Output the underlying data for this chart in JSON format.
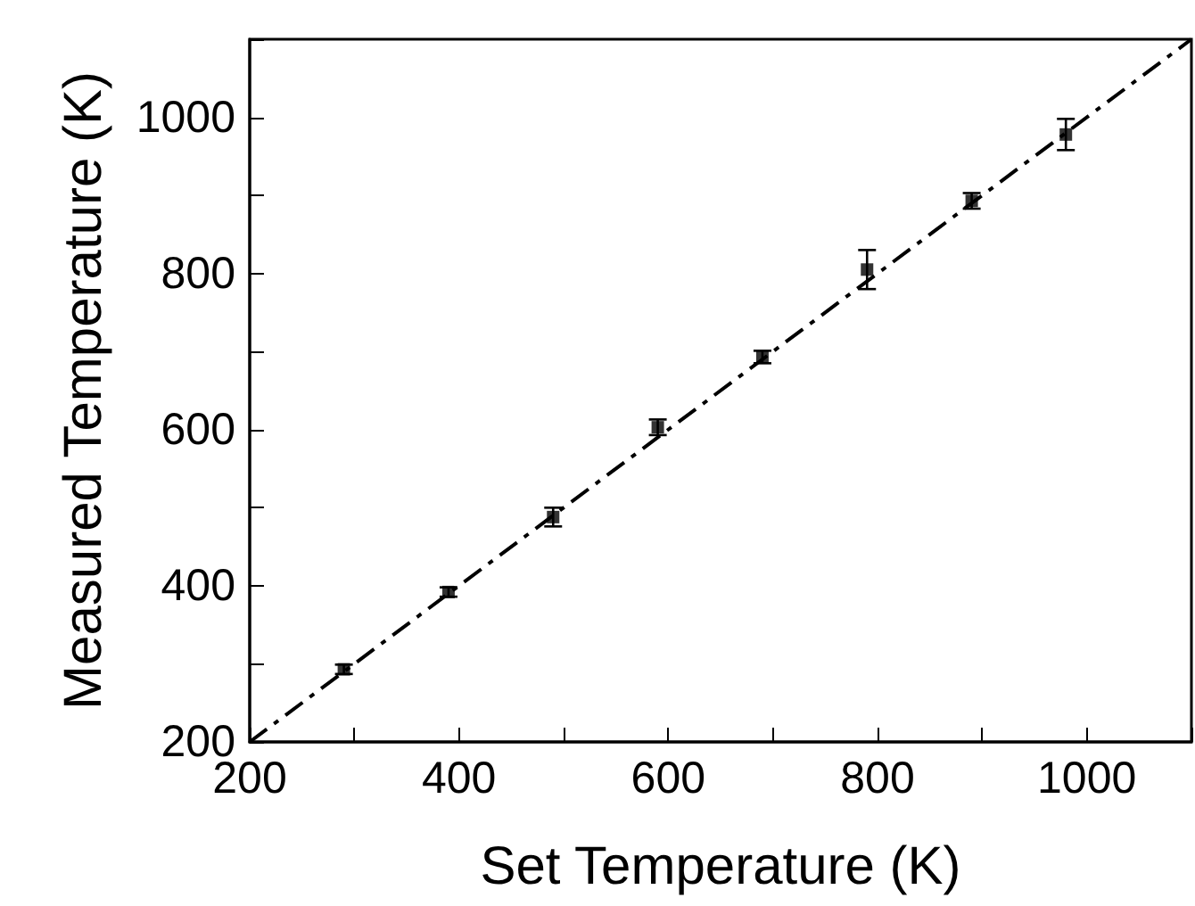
{
  "chart_data": {
    "type": "scatter",
    "xlabel": "Set Temperature (K)",
    "ylabel": "Measured Temperature (K)",
    "xlim": [
      200,
      1100
    ],
    "ylim": [
      200,
      1100
    ],
    "xticks": [
      200,
      {
        "value": 300,
        "label": null
      },
      400,
      {
        "value": 500,
        "label": null
      },
      600,
      {
        "value": 700,
        "label": null
      },
      800,
      {
        "value": 900,
        "label": null
      },
      1000,
      {
        "value": 1100,
        "label": null
      }
    ],
    "yticks": [
      200,
      {
        "value": 300,
        "label": null
      },
      400,
      {
        "value": 500,
        "label": null
      },
      600,
      {
        "value": 700,
        "label": null
      },
      800,
      {
        "value": 900,
        "label": null
      },
      1000,
      {
        "value": 1100,
        "label": null
      }
    ],
    "grid": false,
    "series": [
      {
        "color": "#000000",
        "marker": "square",
        "x": [
          290,
          390,
          490,
          590,
          690,
          790,
          890,
          980
        ],
        "values": [
          293,
          392,
          488,
          603,
          693,
          805,
          893,
          978
        ],
        "errors": [
          6,
          6,
          12,
          10,
          8,
          25,
          10,
          20
        ]
      },
      {
        "type": "line",
        "color": "#000000",
        "line_style": "dashed",
        "marker": "none",
        "x": [
          200,
          1100
        ],
        "values": [
          200,
          1100
        ]
      }
    ]
  }
}
